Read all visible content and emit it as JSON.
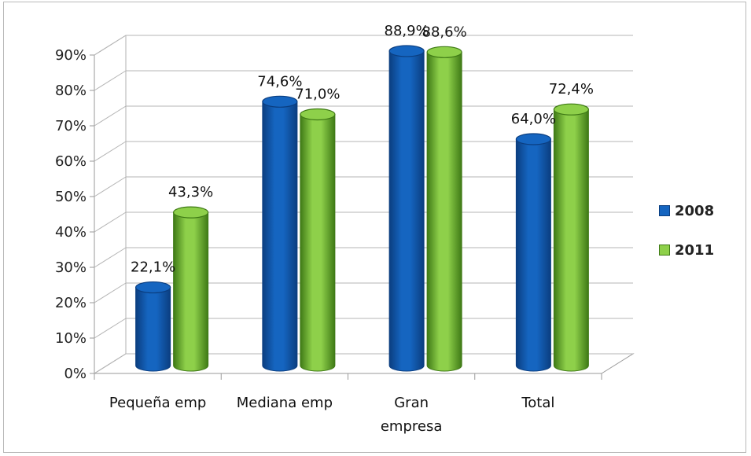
{
  "chart_data": {
    "type": "bar",
    "categories": [
      [
        "Pequeña emp"
      ],
      [
        "Mediana emp"
      ],
      [
        "Gran",
        "empresa"
      ],
      [
        "Total"
      ]
    ],
    "series": [
      {
        "name": "2008",
        "values": [
          22.1,
          74.6,
          88.9,
          64.0
        ],
        "labels": [
          "22,1%",
          "74,6%",
          "88,9%",
          "64,0%"
        ],
        "color": "#1565C0",
        "dark": "#0B3E80"
      },
      {
        "name": "2011",
        "values": [
          43.3,
          71.0,
          88.6,
          72.4
        ],
        "labels": [
          "43,3%",
          "71,0%",
          "88,6%",
          "72,4%"
        ],
        "color": "#8ED04A",
        "dark": "#3F7A16"
      }
    ],
    "yticks": [
      "0%",
      "10%",
      "20%",
      "30%",
      "40%",
      "50%",
      "60%",
      "70%",
      "80%",
      "90%"
    ],
    "ylim": [
      0,
      90
    ],
    "style": "3d-cylinder",
    "grid": true,
    "legend_position": "right"
  }
}
